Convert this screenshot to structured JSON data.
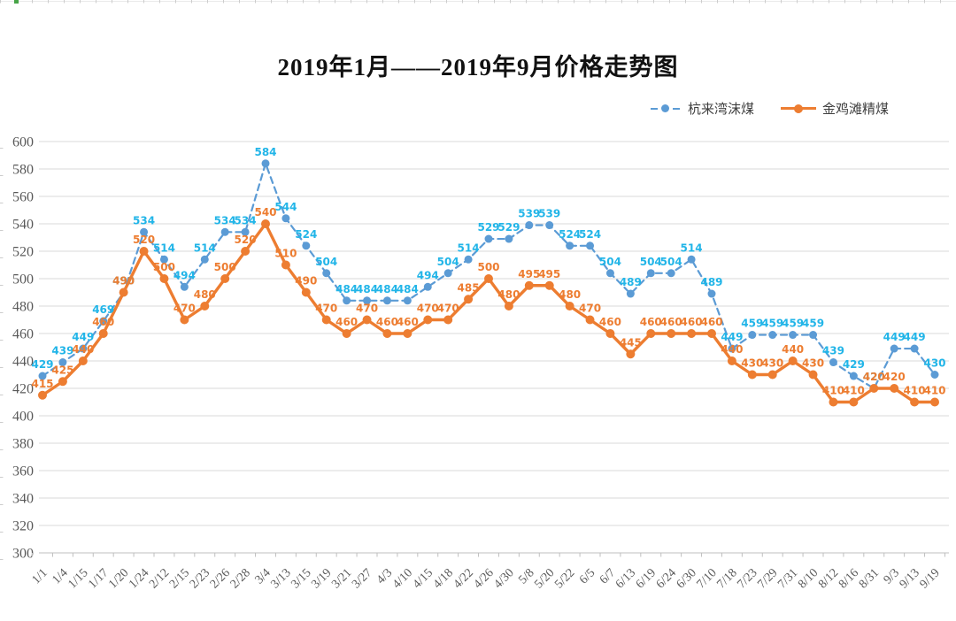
{
  "window": {
    "background": "#FFFFFF"
  },
  "decorations": {
    "edge_tick_color": "#CCCCCC",
    "top_line_color": "#EAEAEA",
    "green_marker_color": "#47A447"
  },
  "title": "2019年1月——2019年9月价格走势图",
  "legend": {
    "position": "top-right",
    "items": [
      {
        "label": "杭来湾沫煤",
        "marker": "dashed-line-with-dot",
        "color": "#5B9BD5"
      },
      {
        "label": "金鸡滩精煤",
        "marker": "solid-line-with-dot",
        "color": "#ED7D31"
      }
    ]
  },
  "chart_data": {
    "type": "line",
    "title": "2019年1月——2019年9月价格走势图",
    "xlabel": "",
    "ylabel": "",
    "grid": true,
    "data_labels": true,
    "legend_position": "top-right",
    "y_axis": {
      "min": 300,
      "max": 600,
      "step": 20,
      "ticks": [
        600,
        580,
        560,
        540,
        520,
        500,
        480,
        460,
        440,
        420,
        400,
        380,
        360,
        340,
        320,
        300
      ],
      "grid_color": "#D9D9D9",
      "axis_color": "#BFBFBF"
    },
    "categories": [
      "1/1",
      "1/4",
      "1/15",
      "1/17",
      "1/20",
      "1/24",
      "2/12",
      "2/15",
      "2/23",
      "2/26",
      "2/28",
      "3/4",
      "3/13",
      "3/15",
      "3/19",
      "3/21",
      "3/27",
      "4/3",
      "4/10",
      "4/15",
      "4/18",
      "4/22",
      "4/26",
      "4/30",
      "5/8",
      "5/20",
      "5/22",
      "6/5",
      "6/7",
      "6/13",
      "6/19",
      "6/24",
      "6/30",
      "7/10",
      "7/18",
      "7/23",
      "7/29",
      "7/31",
      "8/10",
      "8/12",
      "8/16",
      "8/31",
      "9/3",
      "9/13",
      "9/19"
    ],
    "series": [
      {
        "name": "杭来湾沫煤",
        "key": "hanglaiwan",
        "color": "#5B9BD5",
        "label_color": "#22B5E8",
        "dashed": true,
        "values": [
          429,
          439,
          449,
          469,
          490,
          534,
          514,
          494,
          514,
          534,
          534,
          584,
          544,
          524,
          504,
          484,
          484,
          484,
          484,
          494,
          504,
          514,
          529,
          529,
          539,
          539,
          524,
          524,
          504,
          489,
          504,
          504,
          514,
          489,
          449,
          459,
          459,
          459,
          459,
          439,
          429,
          420,
          449,
          449,
          430
        ]
      },
      {
        "name": "金鸡滩精煤",
        "key": "jinjitan",
        "color": "#ED7D31",
        "label_color": "#ED7D31",
        "dashed": false,
        "values": [
          415,
          425,
          440,
          460,
          490,
          520,
          500,
          470,
          480,
          500,
          520,
          540,
          510,
          490,
          470,
          460,
          470,
          460,
          460,
          470,
          470,
          485,
          500,
          480,
          495,
          495,
          480,
          470,
          460,
          445,
          460,
          460,
          460,
          460,
          440,
          430,
          430,
          440,
          430,
          410,
          410,
          420,
          420,
          410,
          410
        ]
      }
    ]
  }
}
